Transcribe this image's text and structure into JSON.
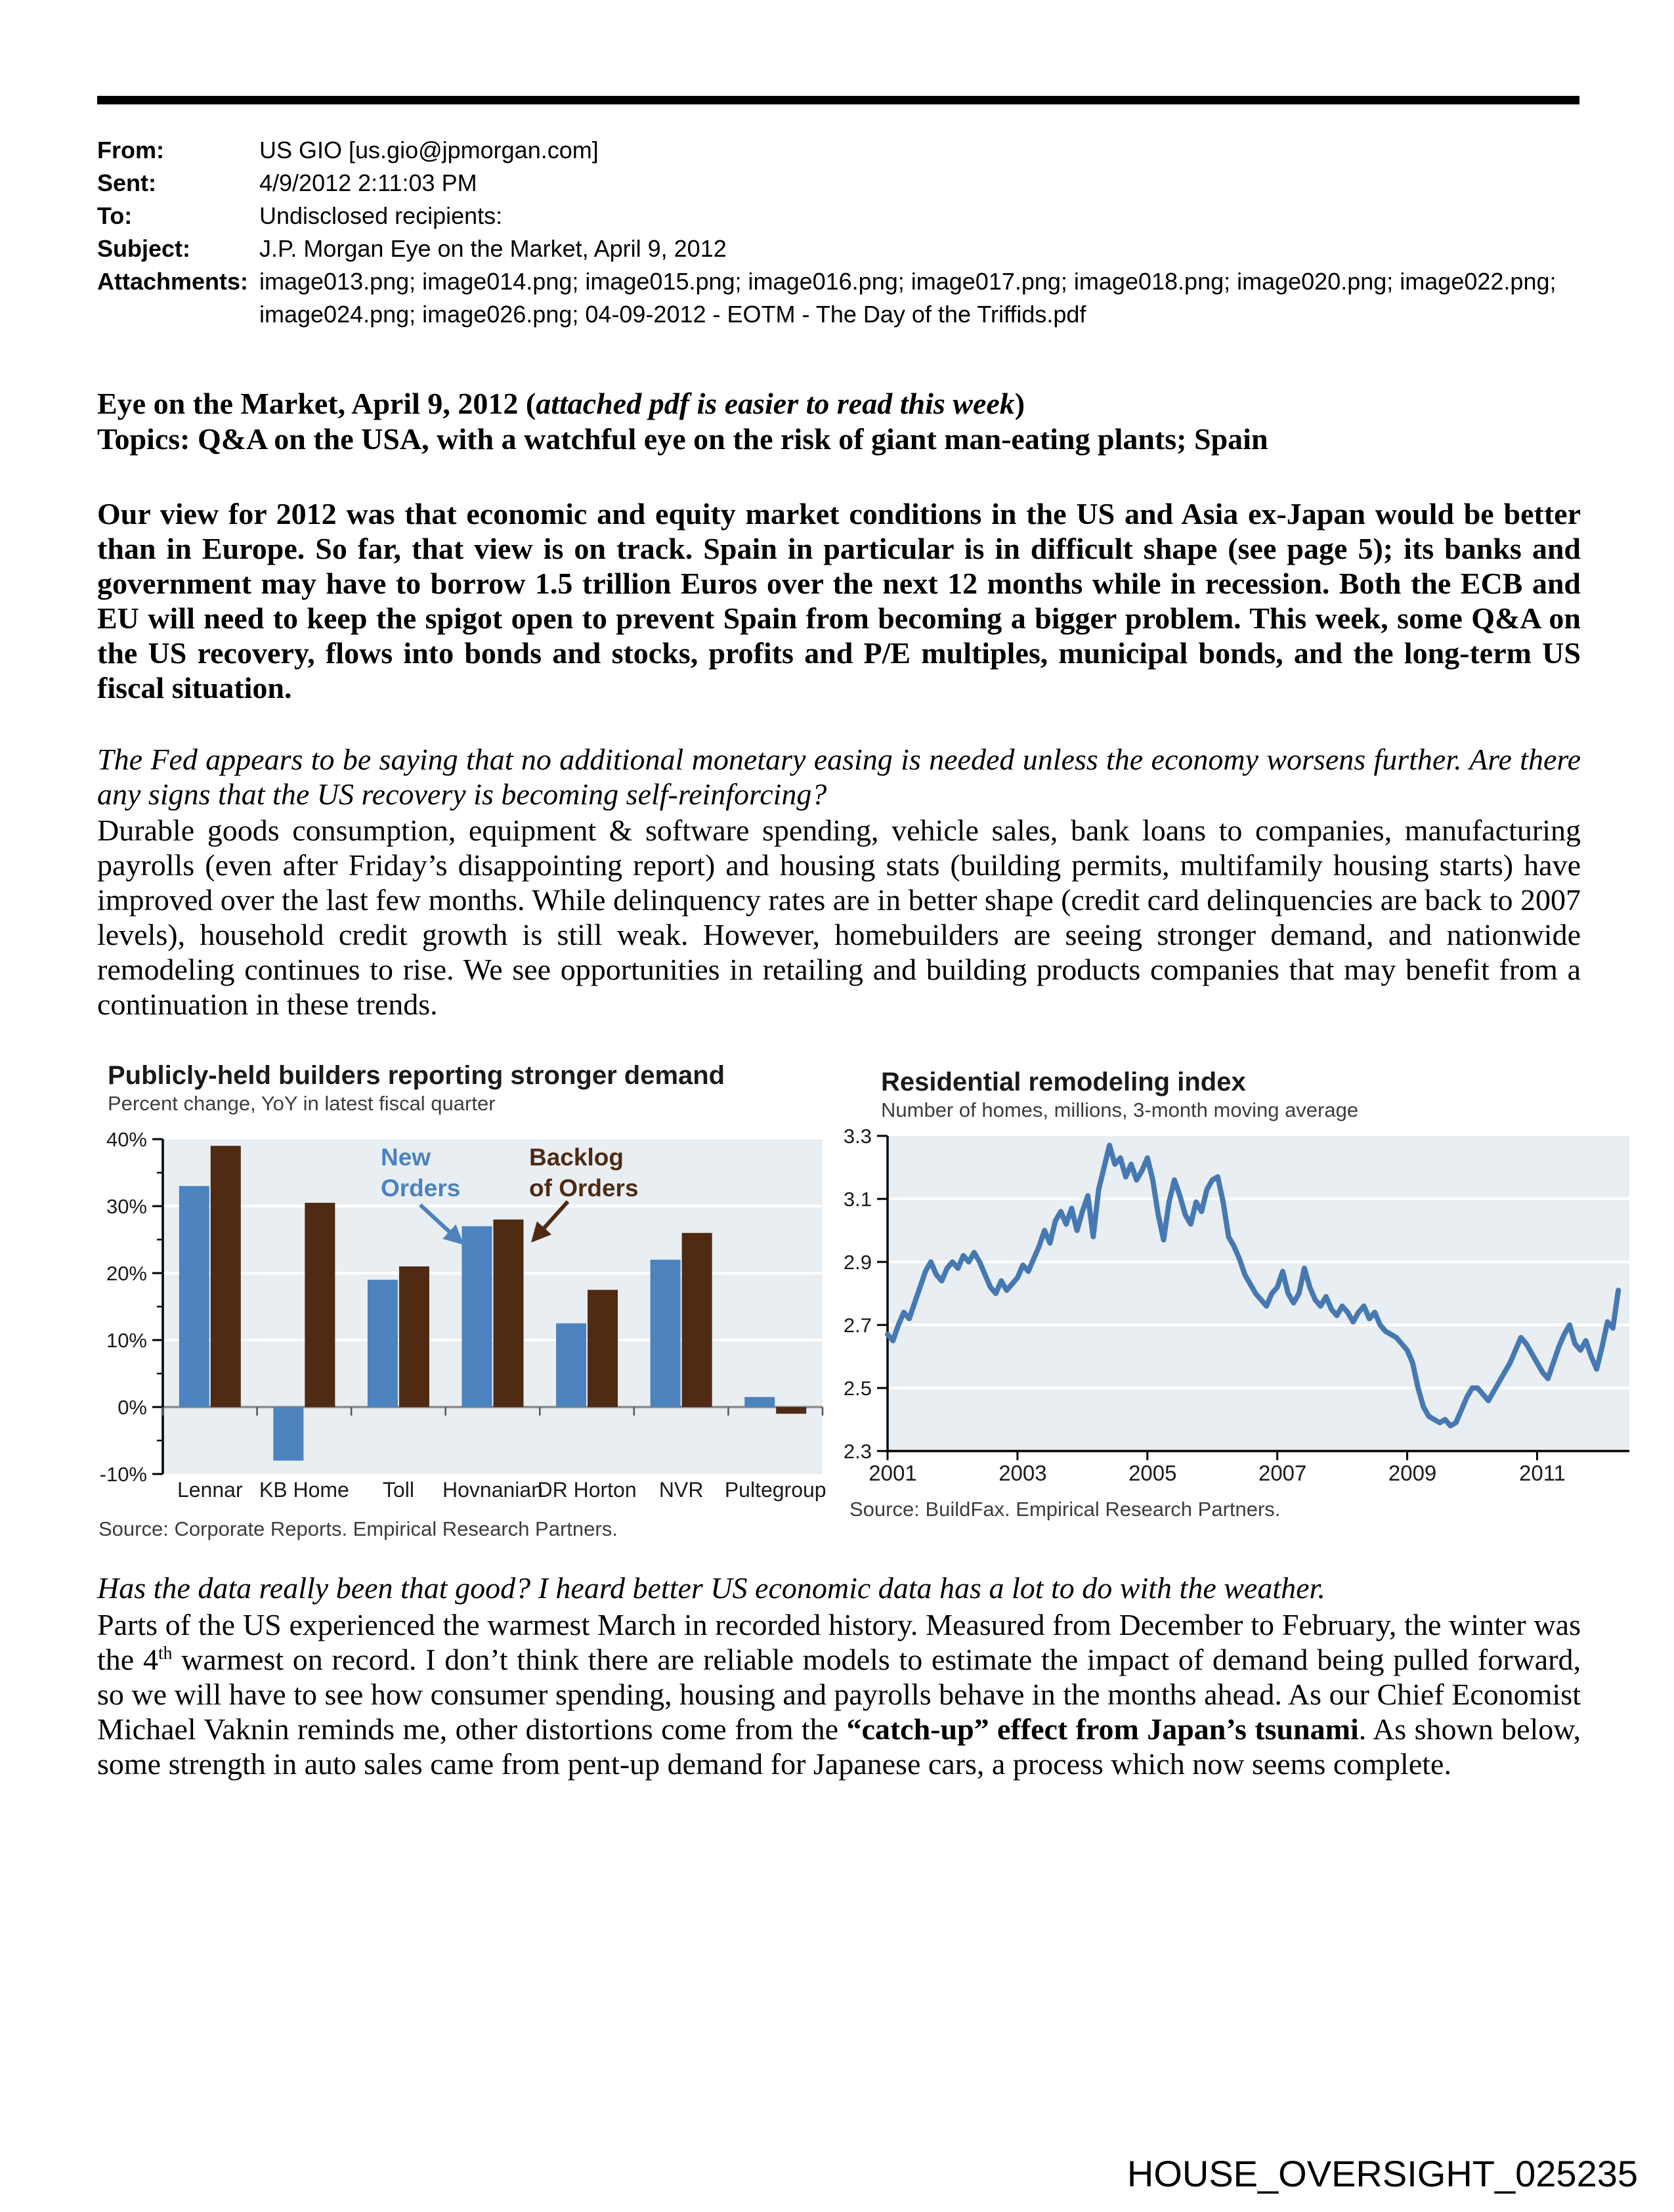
{
  "page": {
    "footer": "HOUSE_OVERSIGHT_025235"
  },
  "email_header": {
    "fields": [
      {
        "label": "From:",
        "value": "US GIO [us.gio@jpmorgan.com]"
      },
      {
        "label": "Sent:",
        "value": "4/9/2012 2:11:03 PM"
      },
      {
        "label": "To:",
        "value": "Undisclosed recipients:"
      },
      {
        "label": "Subject:",
        "value": "J.P. Morgan Eye on the Market, April 9, 2012"
      },
      {
        "label": "Attachments:",
        "value": "image013.png; image014.png; image015.png; image016.png; image017.png; image018.png; image020.png; image022.png; image024.png; image026.png; 04-09-2012 - EOTM - The Day of the Triffids.pdf"
      }
    ]
  },
  "intro": {
    "title_line": [
      {
        "t": "Eye on the Market, April 9, 2012 (",
        "b": true
      },
      {
        "t": "attached pdf is easier to read this week",
        "b": true,
        "i": true
      },
      {
        "t": ")",
        "b": true
      }
    ],
    "topics_line": "Topics: Q&A on the USA, with a watchful eye on the risk of giant man-eating plants; Spain",
    "overview": "Our view for 2012 was that economic and equity market conditions in the US and Asia ex-Japan would be better than in Europe.  So far, that view is on track.  Spain in particular is in difficult shape (see page 5); its banks and government may have to borrow 1.5 trillion Euros over the next 12 months while in recession.  Both the ECB and EU will need to keep the spigot open to prevent Spain from becoming a bigger problem.  This week, some Q&A on the US recovery, flows into bonds and stocks, profits and P/E multiples, municipal bonds, and the long-term US fiscal situation.",
    "q1": "The Fed appears to be saying that no additional monetary easing is needed unless the economy worsens further.  Are there any signs that the US recovery is becoming self-reinforcing?",
    "a1": "Durable goods consumption, equipment & software spending, vehicle sales, bank loans to companies, manufacturing payrolls (even after Friday’s disappointing report) and housing stats (building permits, multifamily housing starts) have improved over the last few months.  While delinquency rates are in better shape (credit card delinquencies are back to 2007 levels), household credit growth is still weak.  However, homebuilders are seeing stronger demand, and nationwide remodeling continues to rise.  We see opportunities in retailing and building products companies that may benefit from a continuation in these trends.",
    "q2": "Has the data really been that good?  I heard better US economic data has a lot to do with the weather.",
    "a2": [
      {
        "t": "Parts of the US experienced the warmest March in recorded history.  Measured from December to February, the winter was the 4"
      },
      {
        "t": "th",
        "sup": true
      },
      {
        "t": " warmest on record.  I don’t think there are reliable models to estimate the impact of demand being pulled forward, so we will have to see how consumer spending, housing and payrolls behave in the months ahead.  As our Chief Economist Michael Vaknin reminds me, other distortions come from the "
      },
      {
        "t": "“catch-up” effect from Japan’s tsunami",
        "b": true
      },
      {
        "t": ".  As shown below, some strength in auto sales came from pent-up demand for Japanese cars, a process which now seems complete."
      }
    ]
  },
  "chart_data": [
    {
      "type": "bar",
      "title": "Publicly-held builders reporting stronger demand",
      "subtitle": "Percent change, YoY in latest fiscal quarter",
      "categories": [
        "Lennar",
        "KB Home",
        "Toll",
        "Hovnanian",
        "DR Horton",
        "NVR",
        "Pultegroup"
      ],
      "series": [
        {
          "name": "New Orders",
          "legend_lines": [
            "New",
            "Orders"
          ],
          "color": "#4C82BE",
          "values": [
            33,
            -8,
            19,
            27,
            12.5,
            22,
            1.5
          ]
        },
        {
          "name": "Backlog of Orders",
          "legend_lines": [
            "Backlog",
            "of Orders"
          ],
          "color": "#4E2B12",
          "values": [
            39,
            30.5,
            21,
            28,
            17.5,
            26,
            -1
          ]
        }
      ],
      "ylim": [
        -10,
        40
      ],
      "yticks": [
        40,
        30,
        20,
        10,
        0,
        -10
      ],
      "ytick_suffix": "%",
      "gridlines": [
        30,
        20,
        10
      ],
      "plot_bg": "#E9EEF3",
      "grid_on": true,
      "legend_position": "inside-top",
      "source": "Source: Corporate Reports.  Empirical Research Partners."
    },
    {
      "type": "line",
      "title": "Residential remodeling index",
      "subtitle": "Number of homes, millions, 3-month moving average",
      "color": "#4679B2",
      "ylim": [
        2.3,
        3.3
      ],
      "yticks": [
        3.3,
        3.1,
        2.9,
        2.7,
        2.5,
        2.3
      ],
      "gridlines": [
        3.1,
        2.9,
        2.7,
        2.5
      ],
      "xticks": [
        2001,
        2003,
        2005,
        2007,
        2009,
        2011
      ],
      "x_start": 2001,
      "x_end": 2012.42,
      "points_per_year": 12,
      "plot_bg": "#E9EEF3",
      "grid_on": true,
      "values": [
        2.67,
        2.65,
        2.7,
        2.74,
        2.72,
        2.77,
        2.82,
        2.87,
        2.9,
        2.86,
        2.84,
        2.88,
        2.9,
        2.88,
        2.92,
        2.9,
        2.93,
        2.9,
        2.86,
        2.82,
        2.8,
        2.84,
        2.81,
        2.83,
        2.85,
        2.89,
        2.87,
        2.91,
        2.95,
        3.0,
        2.96,
        3.03,
        3.06,
        3.02,
        3.07,
        3.0,
        3.06,
        3.11,
        2.98,
        3.13,
        3.2,
        3.27,
        3.21,
        3.23,
        3.17,
        3.21,
        3.16,
        3.19,
        3.23,
        3.16,
        3.05,
        2.97,
        3.09,
        3.16,
        3.11,
        3.05,
        3.02,
        3.09,
        3.06,
        3.13,
        3.16,
        3.17,
        3.09,
        2.98,
        2.95,
        2.91,
        2.86,
        2.83,
        2.8,
        2.78,
        2.76,
        2.8,
        2.82,
        2.87,
        2.8,
        2.77,
        2.8,
        2.88,
        2.82,
        2.78,
        2.76,
        2.79,
        2.75,
        2.73,
        2.76,
        2.74,
        2.71,
        2.74,
        2.76,
        2.72,
        2.74,
        2.7,
        2.68,
        2.67,
        2.66,
        2.64,
        2.62,
        2.58,
        2.5,
        2.44,
        2.41,
        2.4,
        2.39,
        2.4,
        2.38,
        2.39,
        2.43,
        2.47,
        2.5,
        2.5,
        2.48,
        2.46,
        2.49,
        2.52,
        2.55,
        2.58,
        2.62,
        2.66,
        2.64,
        2.61,
        2.58,
        2.55,
        2.53,
        2.58,
        2.63,
        2.67,
        2.7,
        2.64,
        2.62,
        2.65,
        2.6,
        2.56,
        2.63,
        2.71,
        2.69,
        2.81
      ],
      "source": "Source: BuildFax.  Empirical Research Partners."
    }
  ]
}
